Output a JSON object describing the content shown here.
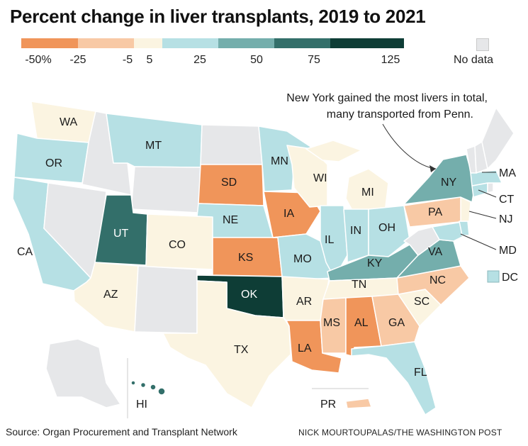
{
  "title": "Percent change in liver transplants, 2019 to 2021",
  "legend": {
    "colors": [
      "#f0955a",
      "#f8c9a5",
      "#fbf4e1",
      "#b6e0e4",
      "#74aeac",
      "#336f6a",
      "#0e3d36"
    ],
    "tick_labels": [
      "-50%",
      "-25",
      "-5",
      "5",
      "25",
      "50",
      "75",
      "125"
    ],
    "no_data_label": "No data",
    "no_data_color": "#e6e7e9"
  },
  "annotation": {
    "line1": "New York gained the most livers in total,",
    "line2": "many transported from Penn."
  },
  "states": {
    "WA": "WA",
    "OR": "OR",
    "CA": "CA",
    "MT": "MT",
    "UT": "UT",
    "CO": "CO",
    "AZ": "AZ",
    "SD": "SD",
    "NE": "NE",
    "KS": "KS",
    "OK": "OK",
    "TX": "TX",
    "MN": "MN",
    "IA": "IA",
    "MO": "MO",
    "AR": "AR",
    "LA": "LA",
    "WI": "WI",
    "IL": "IL",
    "MI": "MI",
    "IN": "IN",
    "OH": "OH",
    "KY": "KY",
    "TN": "TN",
    "MS": "MS",
    "AL": "AL",
    "GA": "GA",
    "FL": "FL",
    "SC": "SC",
    "NC": "NC",
    "VA": "VA",
    "PA": "PA",
    "NY": "NY",
    "MA": "MA",
    "CT": "CT",
    "NJ": "NJ",
    "MD": "MD",
    "DC": "DC",
    "HI": "HI",
    "PR": "PR"
  },
  "source": "Source: Organ Procurement and Transplant Network",
  "credit": "NICK MOURTOUPALAS/THE WASHINGTON POST"
}
